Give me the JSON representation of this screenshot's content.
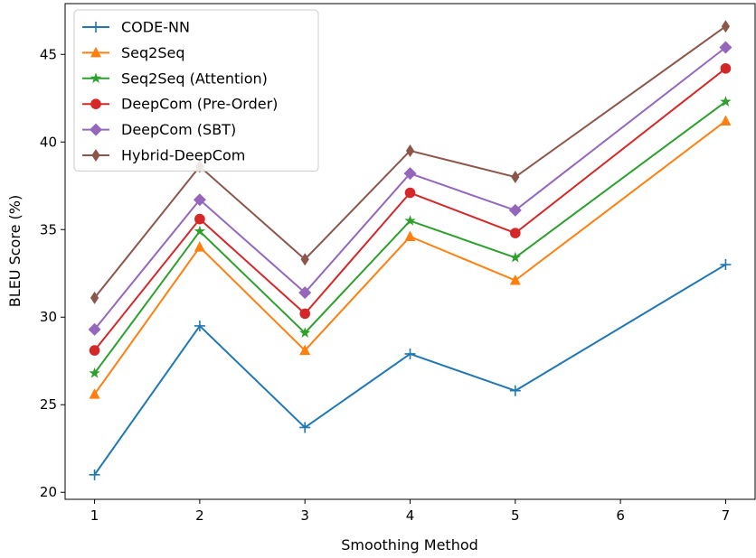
{
  "chart_data": {
    "type": "line",
    "title": "",
    "xlabel": "Smoothing Method",
    "ylabel": "BLEU Score (%)",
    "x": [
      1,
      2,
      3,
      5,
      7,
      4
    ],
    "xticks": [
      "1",
      "2",
      "3",
      "4",
      "5",
      "6",
      "7"
    ],
    "yticks": [
      "20",
      "25",
      "30",
      "35",
      "40",
      "45"
    ],
    "xlim": [
      0.72,
      7.28
    ],
    "ylim": [
      19.6,
      47.9
    ],
    "grid": false,
    "legend_position": "top-left",
    "series": [
      {
        "name": "CODE-NN",
        "color": "#1f77b4",
        "marker": "plus",
        "points": [
          [
            1,
            21.0
          ],
          [
            2,
            29.5
          ],
          [
            3,
            23.7
          ],
          [
            4,
            27.9
          ],
          [
            5,
            25.8
          ],
          [
            7,
            33.0
          ]
        ]
      },
      {
        "name": "Seq2Seq",
        "color": "#ff7f0e",
        "marker": "triangle",
        "points": [
          [
            1,
            25.6
          ],
          [
            2,
            34.0
          ],
          [
            3,
            28.1
          ],
          [
            4,
            34.6
          ],
          [
            5,
            32.1
          ],
          [
            7,
            41.2
          ]
        ]
      },
      {
        "name": "Seq2Seq (Attention)",
        "color": "#2ca02c",
        "marker": "star",
        "points": [
          [
            1,
            26.8
          ],
          [
            2,
            34.9
          ],
          [
            3,
            29.1
          ],
          [
            4,
            35.5
          ],
          [
            5,
            33.4
          ],
          [
            7,
            42.3
          ]
        ]
      },
      {
        "name": "DeepCom (Pre-Order)",
        "color": "#d62728",
        "marker": "circle",
        "points": [
          [
            1,
            28.1
          ],
          [
            2,
            35.6
          ],
          [
            3,
            30.2
          ],
          [
            4,
            37.1
          ],
          [
            5,
            34.8
          ],
          [
            7,
            44.2
          ]
        ]
      },
      {
        "name": "DeepCom (SBT)",
        "color": "#9467bd",
        "marker": "diamond",
        "points": [
          [
            1,
            29.3
          ],
          [
            2,
            36.7
          ],
          [
            3,
            31.4
          ],
          [
            4,
            38.2
          ],
          [
            5,
            36.1
          ],
          [
            7,
            45.4
          ]
        ]
      },
      {
        "name": "Hybrid-DeepCom",
        "color": "#8c564b",
        "marker": "thin-diamond",
        "points": [
          [
            1,
            31.1
          ],
          [
            2,
            38.6
          ],
          [
            3,
            33.3
          ],
          [
            4,
            39.5
          ],
          [
            5,
            38.0
          ],
          [
            7,
            46.6
          ]
        ]
      }
    ]
  }
}
